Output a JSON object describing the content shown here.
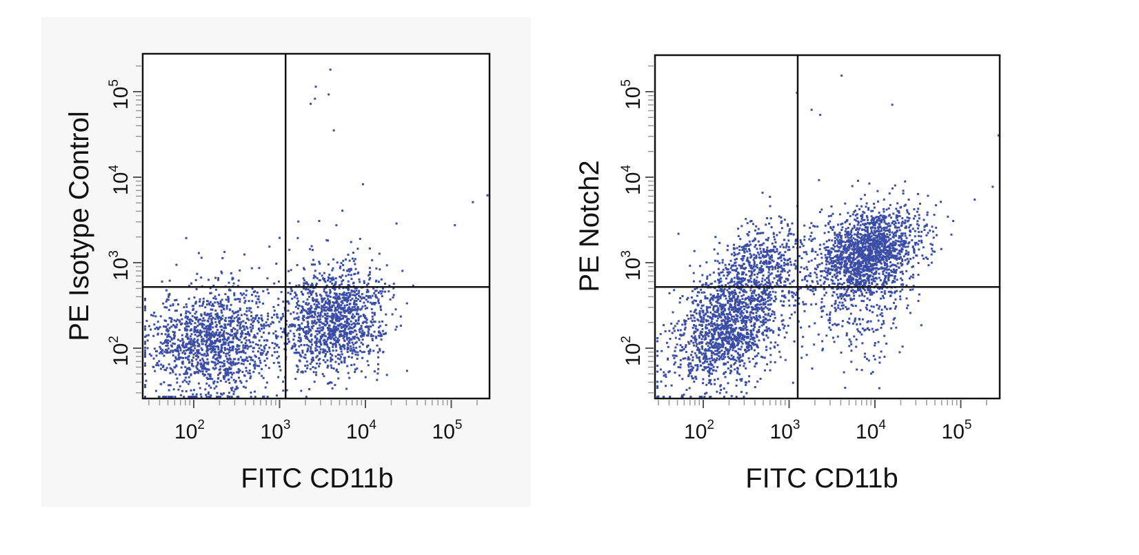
{
  "chart_data": [
    {
      "type": "scatter",
      "title": "",
      "xlabel": "FITC  CD11b",
      "ylabel": "PE  Isotype Control",
      "xscale": "log",
      "yscale": "log",
      "xlim": [
        26,
        275000
      ],
      "ylim": [
        26,
        275000
      ],
      "xticks": [
        {
          "base": "10",
          "exp": "2",
          "value": 100
        },
        {
          "base": "10",
          "exp": "3",
          "value": 1000
        },
        {
          "base": "10",
          "exp": "4",
          "value": 10000
        },
        {
          "base": "10",
          "exp": "5",
          "value": 100000
        }
      ],
      "yticks": [
        {
          "base": "10",
          "exp": "2",
          "value": 100
        },
        {
          "base": "10",
          "exp": "3",
          "value": 1000
        },
        {
          "base": "10",
          "exp": "4",
          "value": 10000
        },
        {
          "base": "10",
          "exp": "5",
          "value": 100000
        }
      ],
      "quadrant_gate": {
        "x": 1175,
        "y": 520
      },
      "point_color": "#3a4da6",
      "background": "#f7f7f7",
      "seed": 11,
      "clusters": [
        {
          "center_log": [
            2.2,
            2.1
          ],
          "sd_log": [
            0.38,
            0.33
          ],
          "rho": 0.1,
          "n": 1400
        },
        {
          "center_log": [
            3.62,
            2.35
          ],
          "sd_log": [
            0.3,
            0.32
          ],
          "rho": 0.15,
          "n": 1300
        }
      ],
      "outliers_log": [
        [
          3.58,
          5.27
        ],
        [
          3.41,
          5.07
        ],
        [
          3.35,
          4.87
        ],
        [
          3.4,
          4.93
        ],
        [
          3.56,
          4.98
        ],
        [
          3.62,
          4.56
        ],
        [
          3.96,
          3.93
        ],
        [
          1.9,
          3.3
        ],
        [
          2.87,
          3.2
        ],
        [
          3.72,
          3.62
        ],
        [
          3.65,
          3.45
        ],
        [
          3.45,
          3.5
        ],
        [
          4.35,
          3.47
        ],
        [
          5.03,
          3.45
        ],
        [
          5.24,
          3.72
        ],
        [
          5.41,
          3.8
        ],
        [
          2.75,
          2.95
        ],
        [
          2.95,
          3.0
        ],
        [
          3.2,
          3.3
        ]
      ]
    },
    {
      "type": "scatter",
      "title": "",
      "xlabel": "FITC  CD11b",
      "ylabel": "PE  Notch2",
      "xscale": "log",
      "yscale": "log",
      "xlim": [
        28,
        275000
      ],
      "ylim": [
        26,
        275000
      ],
      "xticks": [
        {
          "base": "10",
          "exp": "2",
          "value": 100
        },
        {
          "base": "10",
          "exp": "3",
          "value": 1000
        },
        {
          "base": "10",
          "exp": "4",
          "value": 10000
        },
        {
          "base": "10",
          "exp": "5",
          "value": 100000
        }
      ],
      "yticks": [
        {
          "base": "10",
          "exp": "2",
          "value": 100
        },
        {
          "base": "10",
          "exp": "3",
          "value": 1000
        },
        {
          "base": "10",
          "exp": "4",
          "value": 10000
        },
        {
          "base": "10",
          "exp": "5",
          "value": 100000
        }
      ],
      "quadrant_gate": {
        "x": 1260,
        "y": 520
      },
      "point_color": "#3a4da6",
      "background": "#ffffff",
      "seed": 23,
      "clusters": [
        {
          "center_log": [
            2.25,
            2.2
          ],
          "sd_log": [
            0.33,
            0.33
          ],
          "rho": 0.35,
          "n": 1300
        },
        {
          "center_log": [
            2.6,
            2.9
          ],
          "sd_log": [
            0.3,
            0.3
          ],
          "rho": 0.4,
          "n": 650
        },
        {
          "center_log": [
            3.9,
            3.1
          ],
          "sd_log": [
            0.3,
            0.27
          ],
          "rho": 0.3,
          "n": 1700
        },
        {
          "center_log": [
            3.8,
            2.4
          ],
          "sd_log": [
            0.3,
            0.35
          ],
          "rho": 0.0,
          "n": 180
        }
      ],
      "outliers_log": [
        [
          3.6,
          5.2
        ],
        [
          3.08,
          5.0
        ],
        [
          3.25,
          4.8
        ],
        [
          3.35,
          4.74
        ],
        [
          4.19,
          4.86
        ],
        [
          5.45,
          4.5
        ],
        [
          5.36,
          3.9
        ],
        [
          5.15,
          3.75
        ],
        [
          4.9,
          3.5
        ],
        [
          4.6,
          3.6
        ],
        [
          1.7,
          3.35
        ]
      ]
    }
  ]
}
